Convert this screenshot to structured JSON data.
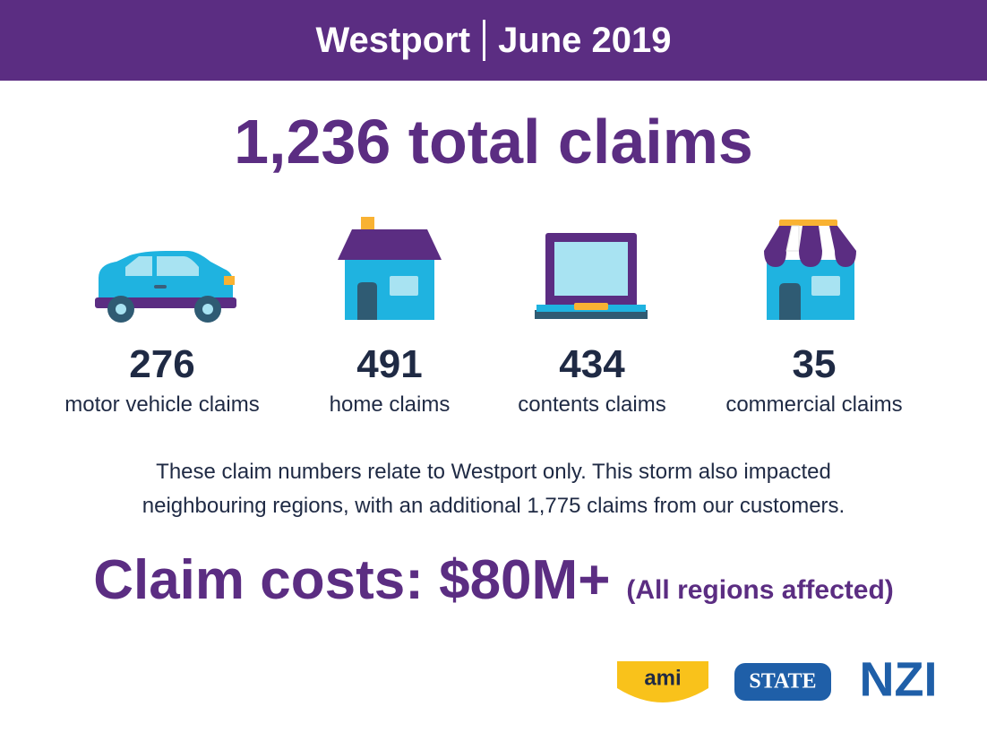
{
  "header": {
    "place": "Westport",
    "date": "June 2019"
  },
  "title": "1,236 total claims",
  "stats": [
    {
      "number": "276",
      "label": "motor vehicle claims"
    },
    {
      "number": "491",
      "label": "home claims"
    },
    {
      "number": "434",
      "label": "contents claims"
    },
    {
      "number": "35",
      "label": "commercial claims"
    }
  ],
  "note": [
    "These claim numbers relate to Westport only. This storm also impacted",
    "neighbouring regions, with an additional 1,775 claims from our customers."
  ],
  "costs": {
    "main": "Claim costs: $80M+",
    "qualifier": "(All regions affected)"
  },
  "logos": [
    "ami",
    "STATE",
    "NZI"
  ]
}
